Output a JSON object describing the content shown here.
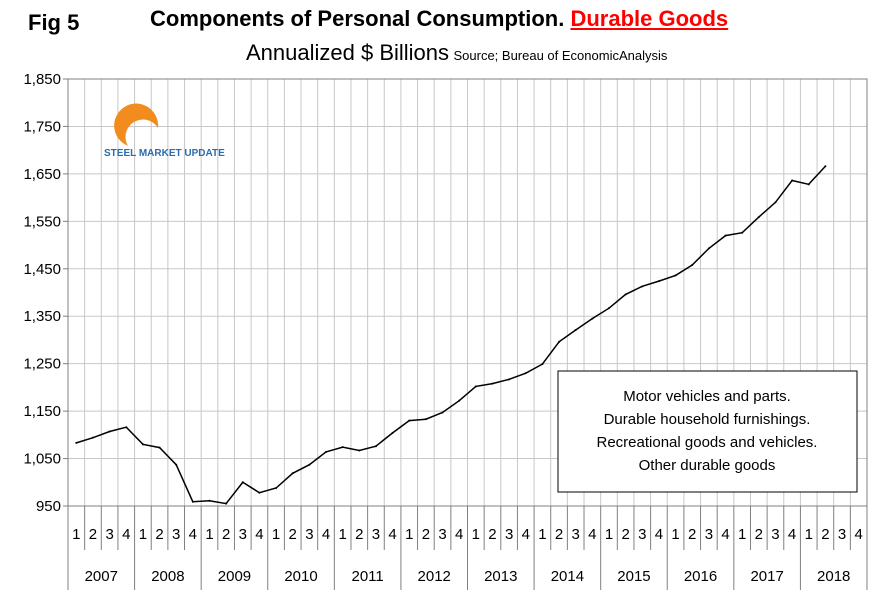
{
  "header": {
    "fig_label": "Fig 5",
    "title_main": "Components of Personal Consumption. ",
    "title_highlight": "Durable Goods",
    "subtitle": "Annualized $ Billions",
    "source": "Source; Bureau of EconomicAnalysis"
  },
  "logo": {
    "text": "STEEL MARKET UPDATE"
  },
  "annotation": {
    "lines": [
      "Motor vehicles and parts.",
      "Durable household furnishings.",
      "Recreational goods and vehicles.",
      "Other durable goods"
    ]
  },
  "chart_data": {
    "type": "line",
    "title": "Components of Personal Consumption. Durable Goods",
    "ylabel": "Annualized $ Billions",
    "ylim": [
      950,
      1850
    ],
    "y_ticks": [
      950,
      1050,
      1150,
      1250,
      1350,
      1450,
      1550,
      1650,
      1750,
      1850
    ],
    "y_tick_labels": [
      "950",
      "1,050",
      "1,150",
      "1,250",
      "1,350",
      "1,450",
      "1,550",
      "1,650",
      "1,750",
      "1,850"
    ],
    "grid": "vertical and horizontal",
    "years": [
      "2007",
      "2008",
      "2009",
      "2010",
      "2011",
      "2012",
      "2013",
      "2014",
      "2015",
      "2016",
      "2017",
      "2018"
    ],
    "quarters": [
      "1",
      "2",
      "3",
      "4"
    ],
    "series": [
      {
        "values": [
          1083,
          1094,
          1107,
          1116,
          1080,
          1073,
          1037,
          959,
          961,
          955,
          1000,
          978,
          988,
          1019,
          1037,
          1064,
          1074,
          1067,
          1076,
          1104,
          1130,
          1133,
          1147,
          1172,
          1202,
          1208,
          1217,
          1230,
          1249,
          1296,
          1321,
          1345,
          1367,
          1396,
          1413,
          1424,
          1436,
          1458,
          1493,
          1520,
          1526,
          1559,
          1590,
          1636,
          1628,
          1666,
          null,
          null
        ]
      }
    ]
  }
}
